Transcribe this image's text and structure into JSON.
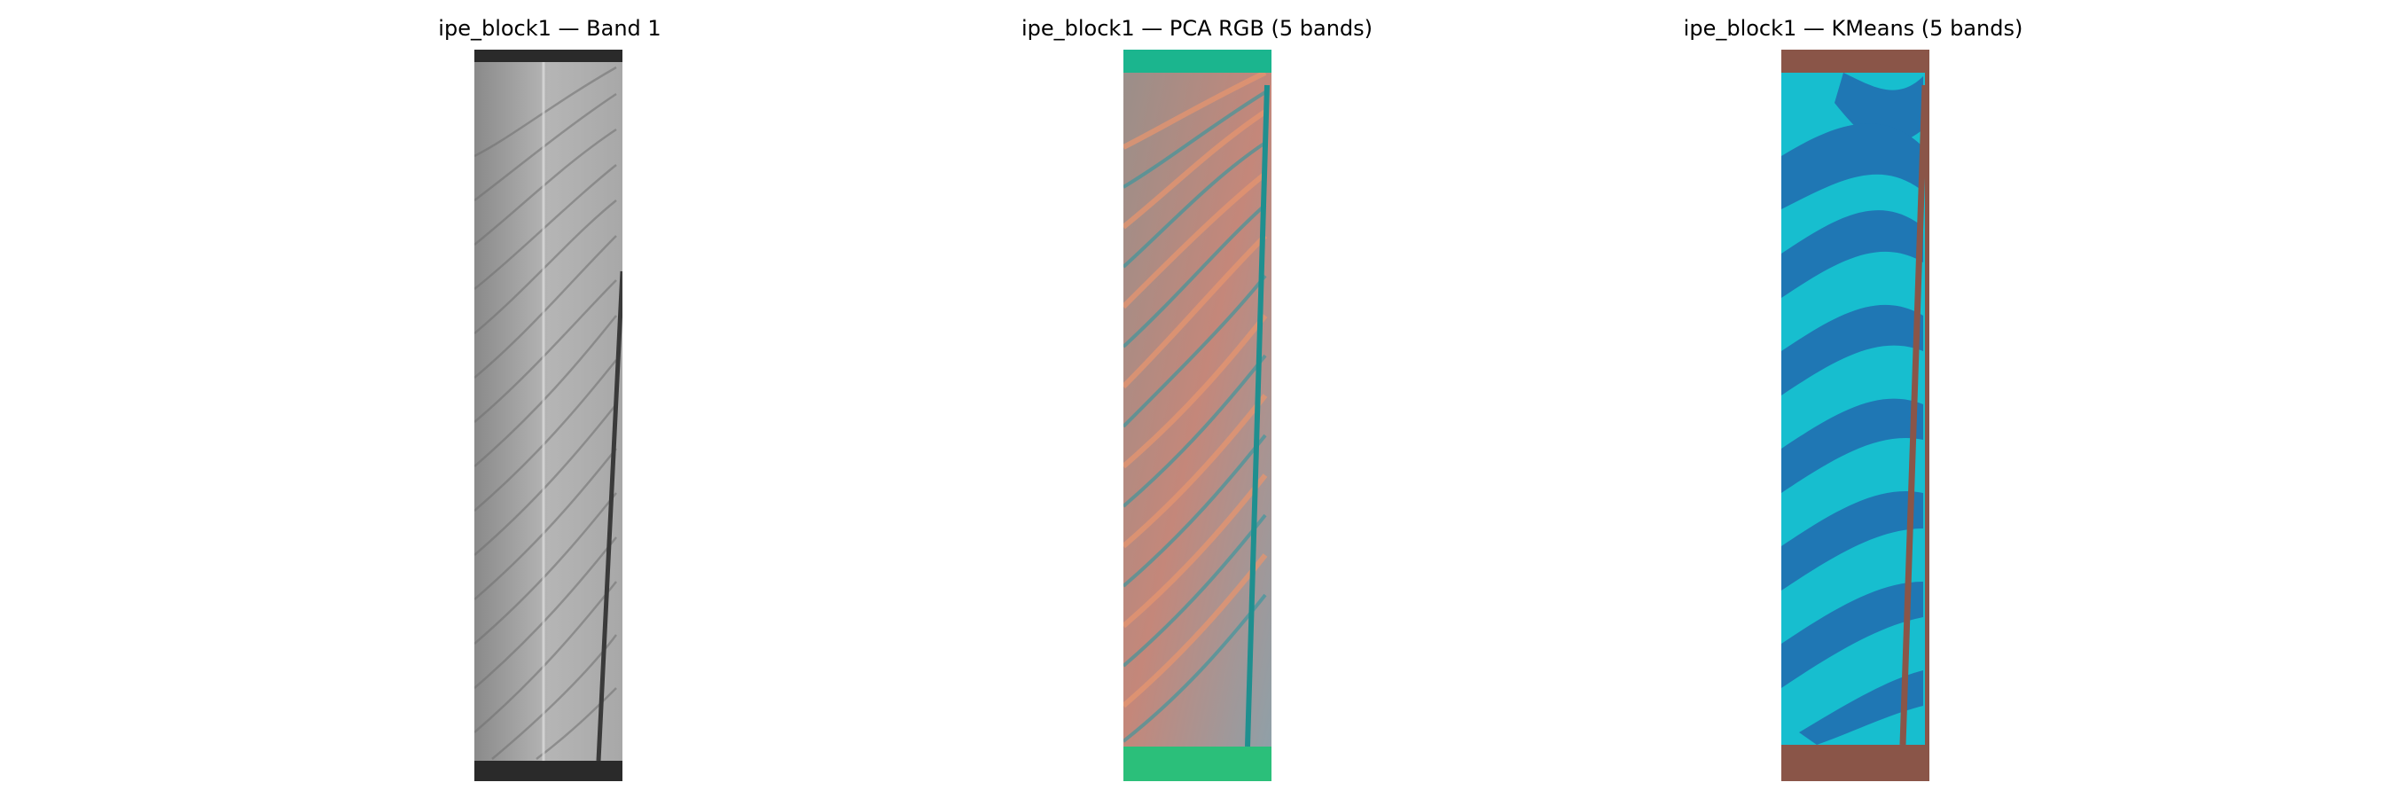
{
  "figure": {
    "panels": [
      {
        "title": "ipe_block1 — Band 1",
        "image_kind": "grayscale-band"
      },
      {
        "title": "ipe_block1 — PCA RGB (5 bands)",
        "image_kind": "pca-rgb-composite"
      },
      {
        "title": "ipe_block1 — KMeans (5 bands)",
        "image_kind": "kmeans-cluster-map"
      }
    ]
  },
  "colors": {
    "kmeans_background": "#8a5548",
    "kmeans_cluster_light": "#17becf",
    "kmeans_cluster_dark": "#1f77b4",
    "pca_background": "#1bb58e",
    "pca_orange": "#e6956f",
    "pca_teal": "#2f97a0",
    "band_light": "#c4c4c4",
    "band_dark": "#2a2a2a"
  }
}
